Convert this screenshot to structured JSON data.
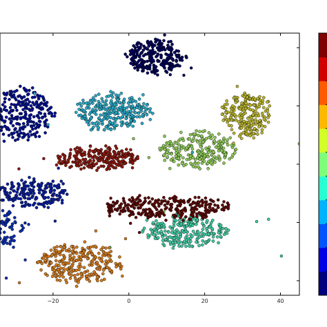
{
  "chart_data": {
    "type": "scatter",
    "title": "",
    "xlabel": "",
    "ylabel": "",
    "xlim": [
      -34,
      45
    ],
    "ylim": [
      -45,
      45
    ],
    "x_ticks": [
      -20,
      0,
      20,
      40
    ],
    "x_tick_labels": [
      "−20",
      "0",
      "20",
      "40"
    ],
    "grid": false,
    "legend": "none",
    "colormap": "jet",
    "colorbar": {
      "position": "right",
      "levels": 10,
      "colors": [
        "#00007f",
        "#0000e6",
        "#0055ff",
        "#00b3ff",
        "#26ffd1",
        "#7dff7a",
        "#d1ff26",
        "#ffb800",
        "#ff5a00",
        "#d10000",
        "#7f0000"
      ]
    },
    "clusters": [
      {
        "class": 0,
        "color": "#00005a",
        "center": [
          7,
          37
        ],
        "spread": [
          7.5,
          5.5
        ],
        "n": 260
      },
      {
        "class": 1,
        "color": "#00108f",
        "center": [
          -28,
          17
        ],
        "spread": [
          8,
          9
        ],
        "n": 250
      },
      {
        "class": 2,
        "color": "#0a1f9c",
        "center": [
          -25,
          -10
        ],
        "spread": [
          9,
          4.5
        ],
        "n": 190
      },
      {
        "class": 3,
        "color": "#0d2eaa",
        "center": [
          -32,
          -22
        ],
        "spread": [
          4,
          6
        ],
        "n": 60
      },
      {
        "class": 4,
        "color": "#2aa7c3",
        "center": [
          -4,
          18
        ],
        "spread": [
          10,
          6
        ],
        "n": 280
      },
      {
        "class": 5,
        "color": "#40c9a0",
        "center": [
          15,
          -23
        ],
        "spread": [
          11,
          5
        ],
        "n": 240
      },
      {
        "class": 6,
        "color": "#8ec858",
        "center": [
          18,
          5
        ],
        "spread": [
          10,
          6
        ],
        "n": 240
      },
      {
        "class": 7,
        "color": "#b8b42e",
        "center": [
          31,
          17
        ],
        "spread": [
          6.5,
          7.5
        ],
        "n": 220
      },
      {
        "class": 8,
        "color": "#d07a1e",
        "center": [
          -13,
          -34
        ],
        "spread": [
          11,
          6.5
        ],
        "n": 280
      },
      {
        "class": 9,
        "color": "#8a1a10",
        "center": [
          -8,
          2
        ],
        "spread": [
          11,
          3.5
        ],
        "n": 250
      },
      {
        "class": 10,
        "color": "#5a0a08",
        "center": [
          10,
          -15
        ],
        "spread": [
          17,
          3.5
        ],
        "n": 290
      }
    ]
  }
}
